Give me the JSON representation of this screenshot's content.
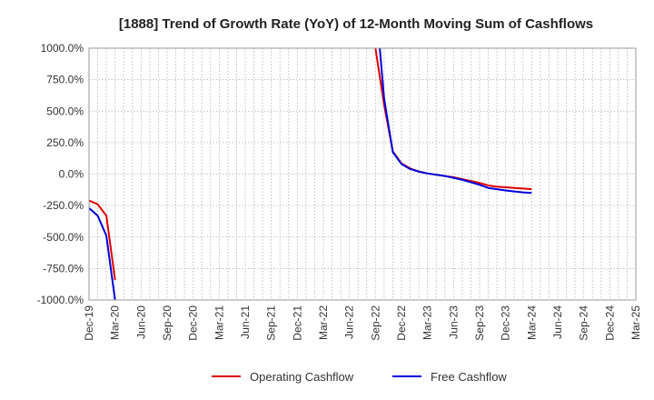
{
  "chart_data": {
    "type": "line",
    "title": "[1888]  Trend of Growth Rate (YoY) of 12-Month Moving Sum of Cashflows",
    "xlabel": "",
    "ylabel": "",
    "ylim": [
      -1000,
      1000
    ],
    "y_ticks": [
      "1000.0%",
      "750.0%",
      "500.0%",
      "250.0%",
      "0.0%",
      "-250.0%",
      "-500.0%",
      "-750.0%",
      "-1000.0%"
    ],
    "y_tick_values": [
      1000,
      750,
      500,
      250,
      0,
      -250,
      -500,
      -750,
      -1000
    ],
    "x_ticks": [
      "Dec-19",
      "Mar-20",
      "Jun-20",
      "Sep-20",
      "Dec-20",
      "Mar-21",
      "Jun-21",
      "Sep-21",
      "Dec-21",
      "Mar-22",
      "Jun-22",
      "Sep-22",
      "Dec-22",
      "Mar-23",
      "Jun-23",
      "Sep-23",
      "Dec-23",
      "Mar-24",
      "Jun-24",
      "Sep-24",
      "Dec-24",
      "Mar-25"
    ],
    "x_months_total": 63,
    "grid": true,
    "legend_position": "bottom",
    "series": [
      {
        "name": "Operating Cashflow",
        "color": "#dd0000",
        "segments": [
          [
            [
              0,
              -210
            ],
            [
              1,
              -240
            ],
            [
              2,
              -330
            ],
            [
              3,
              -840
            ]
          ],
          [
            [
              33,
              1000
            ],
            [
              34,
              550
            ],
            [
              35,
              180
            ],
            [
              36,
              85
            ],
            [
              37,
              45
            ],
            [
              38,
              20
            ],
            [
              39,
              5
            ],
            [
              40,
              -5
            ],
            [
              41,
              -15
            ],
            [
              42,
              -25
            ],
            [
              43,
              -40
            ],
            [
              44,
              -55
            ],
            [
              45,
              -70
            ],
            [
              46,
              -90
            ],
            [
              47,
              -100
            ],
            [
              48,
              -105
            ],
            [
              49,
              -110
            ],
            [
              50,
              -115
            ],
            [
              51,
              -120
            ]
          ]
        ]
      },
      {
        "name": "Free Cashflow",
        "color": "#0000dd",
        "segments": [
          [
            [
              0,
              -270
            ],
            [
              1,
              -330
            ],
            [
              2,
              -490
            ],
            [
              3,
              -1000
            ]
          ],
          [
            [
              33.5,
              1000
            ],
            [
              34,
              600
            ],
            [
              35,
              175
            ],
            [
              36,
              80
            ],
            [
              37,
              40
            ],
            [
              38,
              20
            ],
            [
              39,
              5
            ],
            [
              40,
              -5
            ],
            [
              41,
              -15
            ],
            [
              42,
              -30
            ],
            [
              43,
              -45
            ],
            [
              44,
              -65
            ],
            [
              45,
              -85
            ],
            [
              46,
              -110
            ],
            [
              47,
              -120
            ],
            [
              48,
              -130
            ],
            [
              49,
              -138
            ],
            [
              50,
              -145
            ],
            [
              51,
              -150
            ]
          ]
        ]
      }
    ]
  }
}
